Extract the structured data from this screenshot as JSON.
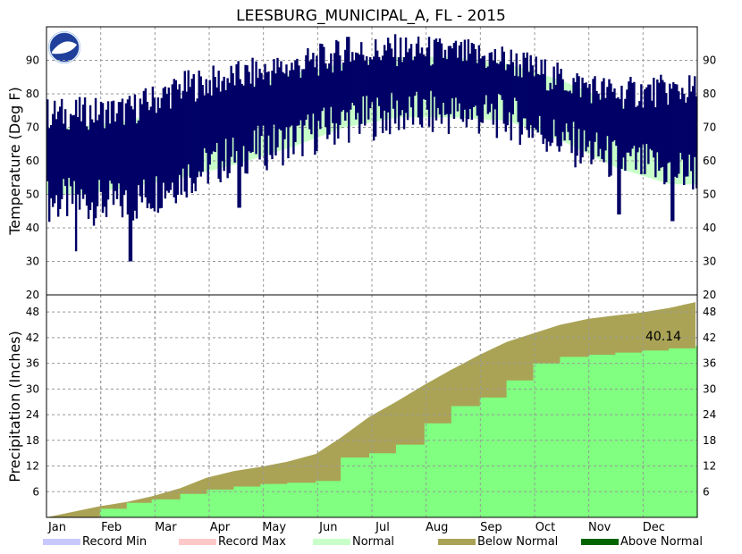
{
  "colors": {
    "record_min": "#c8c8ff",
    "record_max": "#ffc8c8",
    "normal": "#c8ffc8",
    "below_normal": "#aaa355",
    "above_normal": "#006400",
    "observed_temp": "#000066",
    "observed_precip": "#80ff80"
  },
  "chart_data": [
    {
      "type": "bar",
      "title": "LEESBURG_MUNICIPAL_A, FL - 2015",
      "ylabel": "Temperature (Deg F)",
      "ylim": [
        20,
        100
      ],
      "yticks": [
        20,
        30,
        40,
        50,
        60,
        70,
        80,
        90
      ],
      "months": [
        "Jan",
        "Feb",
        "Mar",
        "Apr",
        "May",
        "Jun",
        "Jul",
        "Aug",
        "Sep",
        "Oct",
        "Nov",
        "Dec"
      ],
      "grid": true,
      "normal_band_month_mid": {
        "low": [
          50,
          52,
          55,
          59,
          64,
          70,
          73,
          73,
          72,
          66,
          58,
          53
        ],
        "high": [
          70,
          72,
          76,
          81,
          86,
          89,
          91,
          91,
          89,
          84,
          77,
          72
        ]
      },
      "observed_month_mid": {
        "low": [
          48,
          47,
          55,
          62,
          66,
          72,
          74,
          74,
          73,
          66,
          60,
          57
        ],
        "high": [
          74,
          75,
          82,
          85,
          88,
          92,
          93,
          92,
          90,
          84,
          80,
          81
        ]
      },
      "extremes": [
        {
          "month": "Jan",
          "low": 33
        },
        {
          "month": "Feb",
          "low": 30
        },
        {
          "month": "Apr",
          "low": 46
        },
        {
          "month": "Jun",
          "high": 97
        },
        {
          "month": "Nov",
          "low": 44
        },
        {
          "month": "Dec",
          "low": 42
        }
      ]
    },
    {
      "type": "area",
      "ylabel": "Precipitation (Inches)",
      "ylim": [
        0,
        52
      ],
      "yticks": [
        6,
        12,
        18,
        24,
        30,
        36,
        42,
        48
      ],
      "grid": true,
      "x_days": [
        0,
        30,
        45,
        59,
        75,
        90,
        105,
        120,
        135,
        151,
        165,
        181,
        196,
        212,
        227,
        243,
        258,
        273,
        288,
        304,
        319,
        334,
        349,
        364
      ],
      "normal_cumulative": [
        0,
        2.6,
        3.6,
        4.9,
        6.8,
        9.3,
        10.8,
        11.8,
        13.0,
        14.8,
        18.6,
        23.5,
        27.0,
        31.0,
        34.5,
        38.0,
        41.0,
        43.0,
        45.0,
        46.4,
        47.2,
        47.9,
        48.9,
        50.3
      ],
      "observed_cumulative": [
        0,
        2.0,
        3.4,
        4.2,
        5.5,
        6.5,
        7.2,
        7.8,
        8.1,
        8.5,
        14.0,
        15.0,
        17.0,
        22.0,
        26.0,
        28.0,
        32.0,
        36.0,
        37.5,
        38.0,
        38.5,
        39.0,
        39.5,
        40.14
      ],
      "annotation": "40.14"
    }
  ],
  "legend": [
    {
      "label": "Record Min",
      "color_key": "record_min"
    },
    {
      "label": "Record Max",
      "color_key": "record_max"
    },
    {
      "label": "Normal",
      "color_key": "normal"
    },
    {
      "label": "Below Normal",
      "color_key": "below_normal"
    },
    {
      "label": "Above Normal",
      "color_key": "above_normal"
    }
  ]
}
